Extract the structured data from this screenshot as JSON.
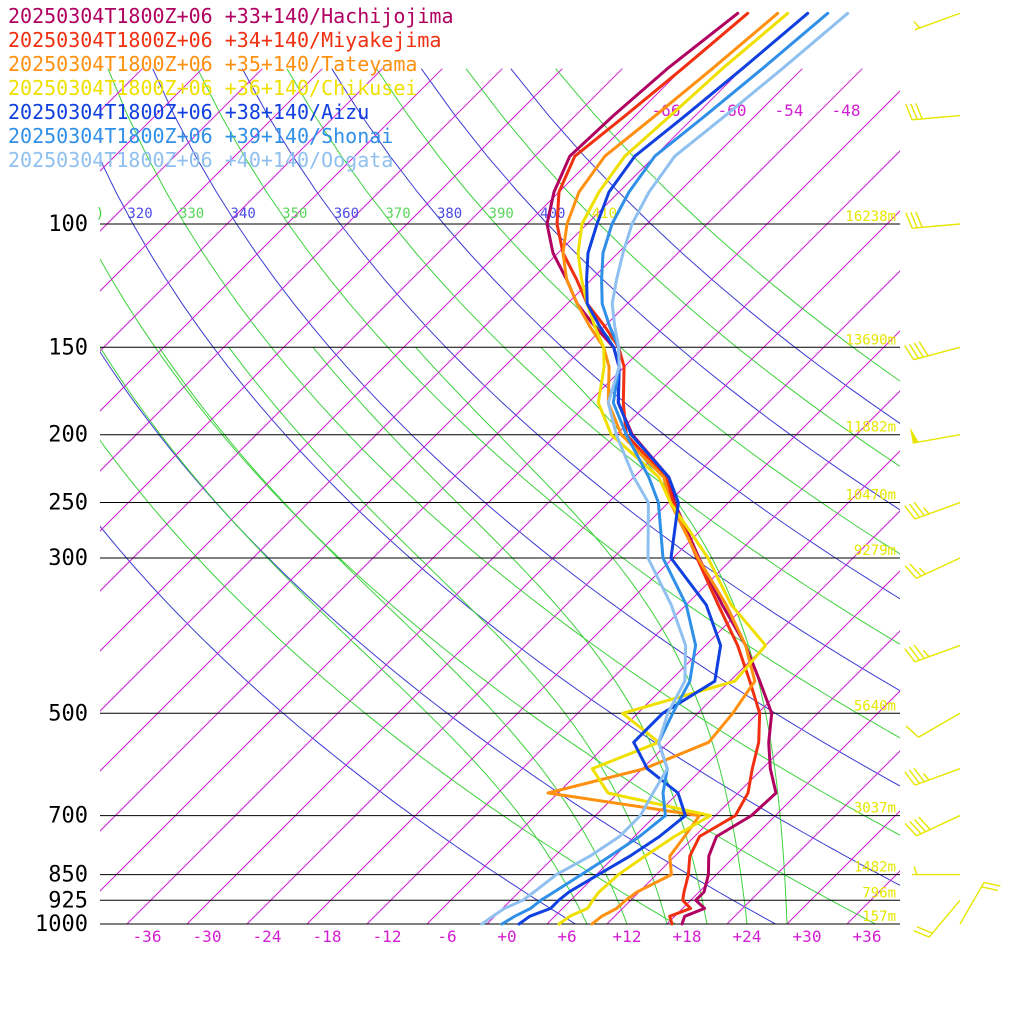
{
  "chart_data": {
    "type": "line",
    "chart_kind": "skew-T log-P sounding",
    "pressure_levels": [
      100,
      150,
      200,
      250,
      300,
      500,
      700,
      850,
      925,
      1000
    ],
    "pressure_labels": [
      "100",
      "150",
      "200",
      "250",
      "300",
      "500",
      "700",
      "850",
      "925",
      "1000"
    ],
    "height_labels": [
      {
        "p": 100,
        "text": "16238m"
      },
      {
        "p": 150,
        "text": "13690m"
      },
      {
        "p": 200,
        "text": "11882m"
      },
      {
        "p": 250,
        "text": "10470m"
      },
      {
        "p": 300,
        "text": "9279m"
      },
      {
        "p": 500,
        "text": "5640m"
      },
      {
        "p": 700,
        "text": "3037m"
      },
      {
        "p": 850,
        "text": "1482m"
      },
      {
        "p": 925,
        "text": "796m"
      },
      {
        "p": 1000,
        "text": "157m"
      }
    ],
    "temperature_ticks": [
      "-36",
      "-30",
      "-24",
      "-18",
      "-12",
      "-6",
      "+0",
      "+6",
      "+12",
      "+18",
      "+24",
      "+30",
      "+36"
    ],
    "temperature_tick_values": [
      -36,
      -30,
      -24,
      -18,
      -12,
      -6,
      0,
      6,
      12,
      18,
      24,
      30,
      36
    ],
    "upper_isotherm_labels": [
      {
        "t": -66,
        "text": "-66"
      },
      {
        "t": -60,
        "text": "-60"
      },
      {
        "t": -54,
        "text": "-54"
      },
      {
        "t": -48,
        "text": "-48"
      }
    ],
    "theta_labels": [
      "320",
      "330",
      "340",
      "350",
      "360",
      "370",
      "380",
      "390",
      "400",
      "410"
    ],
    "theta_label_clipped": ")",
    "theta_label_colors": [
      "#4a4ae6",
      "#5ad65a",
      "#4a4ae6",
      "#5ad65a",
      "#4a4ae6",
      "#5ad65a",
      "#4a4ae6",
      "#5ad65a",
      "#4a4ae6",
      "#e6e600"
    ],
    "xlim": [
      -40,
      40
    ],
    "ylim": [
      1000,
      100
    ],
    "colors": {
      "isotherm": "#d21ed2",
      "dry_adiabat_a": "#3c3cd2",
      "dry_adiabat_b": "#3cd23c",
      "moist_adiabat": "#3cd23c",
      "isobar": "#000000",
      "height_label": "#e6e600",
      "wind_barb": "#e6e600",
      "temp_tick": "#d21ed2"
    },
    "series": [
      {
        "name": "20250304T1800Z+06 +33+140/Hachijojima",
        "color": "#b00060",
        "points": [
          [
            1000,
            17.5
          ],
          [
            975,
            17
          ],
          [
            950,
            18.2
          ],
          [
            925,
            16.5
          ],
          [
            900,
            16.5
          ],
          [
            850,
            15.2
          ],
          [
            800,
            13.4
          ],
          [
            750,
            12.2
          ],
          [
            700,
            13.6
          ],
          [
            650,
            13.8
          ],
          [
            600,
            10.8
          ],
          [
            550,
            8
          ],
          [
            500,
            5.4
          ],
          [
            450,
            1
          ],
          [
            400,
            -4
          ],
          [
            350,
            -10.4
          ],
          [
            300,
            -17.4
          ],
          [
            250,
            -25.4
          ],
          [
            230,
            -28.5
          ],
          [
            200,
            -36.4
          ],
          [
            180,
            -41
          ],
          [
            160,
            -44.5
          ],
          [
            150,
            -47
          ],
          [
            140,
            -51
          ],
          [
            130,
            -55
          ],
          [
            120,
            -58.5
          ],
          [
            110,
            -62.5
          ],
          [
            100,
            -66
          ],
          [
            90,
            -68.5
          ],
          [
            80,
            -70.5
          ],
          [
            70,
            -70.2
          ],
          [
            60,
            -69.5
          ],
          [
            50,
            -68
          ]
        ]
      },
      {
        "name": "20250304T1800Z+06 +34+140/Miyakejima",
        "color": "#f03010",
        "points": [
          [
            1000,
            16.5
          ],
          [
            975,
            15.5
          ],
          [
            950,
            16.8
          ],
          [
            925,
            15.2
          ],
          [
            900,
            14.5
          ],
          [
            850,
            13.2
          ],
          [
            800,
            11.5
          ],
          [
            750,
            10.5
          ],
          [
            700,
            12
          ],
          [
            650,
            11
          ],
          [
            600,
            9
          ],
          [
            550,
            7
          ],
          [
            500,
            4.2
          ],
          [
            450,
            0
          ],
          [
            400,
            -4.8
          ],
          [
            350,
            -10.8
          ],
          [
            300,
            -17.6
          ],
          [
            250,
            -25.5
          ],
          [
            230,
            -28.8
          ],
          [
            200,
            -37
          ],
          [
            180,
            -40.5
          ],
          [
            160,
            -44
          ],
          [
            150,
            -46.5
          ],
          [
            140,
            -50
          ],
          [
            130,
            -54
          ],
          [
            120,
            -57.5
          ],
          [
            110,
            -61.5
          ],
          [
            100,
            -65
          ],
          [
            90,
            -68
          ],
          [
            80,
            -70
          ],
          [
            70,
            -69
          ],
          [
            60,
            -68
          ],
          [
            50,
            -67
          ]
        ]
      },
      {
        "name": "20250304T1800Z+06 +35+140/Tateyama",
        "color": "#ff9010",
        "points": [
          [
            1000,
            8.5
          ],
          [
            975,
            8.7
          ],
          [
            950,
            9.4
          ],
          [
            925,
            9.5
          ],
          [
            900,
            9.8
          ],
          [
            850,
            11.5
          ],
          [
            800,
            9.5
          ],
          [
            750,
            9
          ],
          [
            700,
            8.4
          ],
          [
            650,
            -9
          ],
          [
            600,
            -1.8
          ],
          [
            550,
            2
          ],
          [
            500,
            1.5
          ],
          [
            450,
            0.5
          ],
          [
            400,
            -4
          ],
          [
            350,
            -10
          ],
          [
            300,
            -17.5
          ],
          [
            250,
            -25.8
          ],
          [
            230,
            -29
          ],
          [
            200,
            -37.5
          ],
          [
            180,
            -42
          ],
          [
            160,
            -45.5
          ],
          [
            150,
            -48
          ],
          [
            140,
            -51.5
          ],
          [
            130,
            -55
          ],
          [
            120,
            -58.5
          ],
          [
            110,
            -61.5
          ],
          [
            100,
            -64
          ],
          [
            90,
            -66
          ],
          [
            80,
            -67
          ],
          [
            70,
            -66
          ],
          [
            60,
            -65
          ],
          [
            50,
            -64
          ]
        ]
      },
      {
        "name": "20250304T1800Z+06 +36+140/Chikusei",
        "color": "#f0e000",
        "points": [
          [
            1000,
            5.2
          ],
          [
            975,
            5.5
          ],
          [
            950,
            6.5
          ],
          [
            925,
            6.2
          ],
          [
            900,
            6
          ],
          [
            850,
            6.2
          ],
          [
            800,
            7
          ],
          [
            750,
            8
          ],
          [
            700,
            9.5
          ],
          [
            650,
            -3
          ],
          [
            600,
            -7
          ],
          [
            550,
            -3
          ],
          [
            500,
            -9.5
          ],
          [
            450,
            -1.5
          ],
          [
            400,
            -2
          ],
          [
            350,
            -9.5
          ],
          [
            300,
            -16.5
          ],
          [
            250,
            -25.8
          ],
          [
            230,
            -29.5
          ],
          [
            200,
            -38.5
          ],
          [
            180,
            -43
          ],
          [
            160,
            -46
          ],
          [
            150,
            -48
          ],
          [
            140,
            -51
          ],
          [
            130,
            -54
          ],
          [
            120,
            -57
          ],
          [
            110,
            -60
          ],
          [
            100,
            -62.5
          ],
          [
            90,
            -64
          ],
          [
            80,
            -65
          ],
          [
            70,
            -64.5
          ],
          [
            60,
            -64
          ],
          [
            50,
            -63
          ]
        ]
      },
      {
        "name": "20250304T1800Z+06 +38+140/Aizu",
        "color": "#1040e0",
        "points": [
          [
            1000,
            1.2
          ],
          [
            975,
            1.5
          ],
          [
            950,
            2.8
          ],
          [
            925,
            2.8
          ],
          [
            900,
            3
          ],
          [
            850,
            4.2
          ],
          [
            800,
            5.5
          ],
          [
            750,
            6.5
          ],
          [
            700,
            7
          ],
          [
            650,
            4
          ],
          [
            600,
            -1.5
          ],
          [
            550,
            -5.5
          ],
          [
            500,
            -5.5
          ],
          [
            450,
            -3.5
          ],
          [
            400,
            -6.5
          ],
          [
            350,
            -12
          ],
          [
            300,
            -20.2
          ],
          [
            250,
            -25
          ],
          [
            230,
            -28.5
          ],
          [
            200,
            -36.5
          ],
          [
            180,
            -41
          ],
          [
            160,
            -44.5
          ],
          [
            150,
            -47
          ],
          [
            140,
            -50.5
          ],
          [
            130,
            -54
          ],
          [
            120,
            -56.5
          ],
          [
            110,
            -59
          ],
          [
            100,
            -61
          ],
          [
            90,
            -63
          ],
          [
            80,
            -64
          ],
          [
            70,
            -63
          ],
          [
            60,
            -62
          ],
          [
            50,
            -61
          ]
        ]
      },
      {
        "name": "20250304T1800Z+06 +39+140/Shonai",
        "color": "#3090e8",
        "points": [
          [
            1000,
            -0.5
          ],
          [
            975,
            0
          ],
          [
            950,
            0.8
          ],
          [
            925,
            1
          ],
          [
            900,
            1.5
          ],
          [
            850,
            2.5
          ],
          [
            800,
            3.5
          ],
          [
            750,
            4.5
          ],
          [
            700,
            5
          ],
          [
            650,
            2.5
          ],
          [
            600,
            0.5
          ],
          [
            550,
            -3
          ],
          [
            500,
            -4.5
          ],
          [
            450,
            -6
          ],
          [
            400,
            -9
          ],
          [
            350,
            -14
          ],
          [
            300,
            -21
          ],
          [
            250,
            -27
          ],
          [
            230,
            -30.5
          ],
          [
            200,
            -37
          ],
          [
            180,
            -41.5
          ],
          [
            160,
            -44.5
          ],
          [
            150,
            -46.5
          ],
          [
            140,
            -49.5
          ],
          [
            130,
            -52.5
          ],
          [
            120,
            -55
          ],
          [
            110,
            -57.5
          ],
          [
            100,
            -59.5
          ],
          [
            90,
            -61
          ],
          [
            80,
            -62
          ],
          [
            70,
            -61
          ],
          [
            60,
            -60
          ],
          [
            50,
            -59
          ]
        ]
      },
      {
        "name": "20250304T1800Z+06 +40+140/Oogata",
        "color": "#90c0f0",
        "points": [
          [
            1000,
            -2.5
          ],
          [
            975,
            -2.2
          ],
          [
            950,
            -1.8
          ],
          [
            925,
            -0.8
          ],
          [
            900,
            -0.5
          ],
          [
            850,
            0
          ],
          [
            800,
            1.5
          ],
          [
            750,
            2.5
          ],
          [
            700,
            2.5
          ],
          [
            650,
            1.5
          ],
          [
            600,
            0.5
          ],
          [
            550,
            -3
          ],
          [
            500,
            -5
          ],
          [
            450,
            -6.5
          ],
          [
            400,
            -10
          ],
          [
            350,
            -15.5
          ],
          [
            300,
            -22.5
          ],
          [
            250,
            -28
          ],
          [
            230,
            -32
          ],
          [
            200,
            -38
          ],
          [
            180,
            -42
          ],
          [
            160,
            -44.5
          ],
          [
            150,
            -46.5
          ],
          [
            140,
            -49
          ],
          [
            130,
            -51.5
          ],
          [
            120,
            -53.5
          ],
          [
            110,
            -55.5
          ],
          [
            100,
            -57.5
          ],
          [
            90,
            -59
          ],
          [
            80,
            -60
          ],
          [
            70,
            -59
          ],
          [
            60,
            -58
          ],
          [
            50,
            -57
          ]
        ]
      }
    ],
    "wind_barbs": [
      {
        "p": 1000,
        "dir": 30,
        "speed": 20
      },
      {
        "p": 925,
        "dir": 220,
        "speed": 20
      },
      {
        "p": 850,
        "dir": 270,
        "speed": 5
      },
      {
        "p": 700,
        "dir": 245,
        "speed": 40
      },
      {
        "p": 600,
        "dir": 250,
        "speed": 35
      },
      {
        "p": 500,
        "dir": 240,
        "speed": 10
      },
      {
        "p": 400,
        "dir": 250,
        "speed": 35
      },
      {
        "p": 300,
        "dir": 245,
        "speed": 25
      },
      {
        "p": 250,
        "dir": 250,
        "speed": 35
      },
      {
        "p": 200,
        "dir": 260,
        "speed": 50
      },
      {
        "p": 150,
        "dir": 255,
        "speed": 40
      },
      {
        "p": 100,
        "dir": 265,
        "speed": 30
      },
      {
        "p": 70,
        "dir": 265,
        "speed": 30
      },
      {
        "p": 50,
        "dir": 250,
        "speed": 5
      }
    ]
  }
}
